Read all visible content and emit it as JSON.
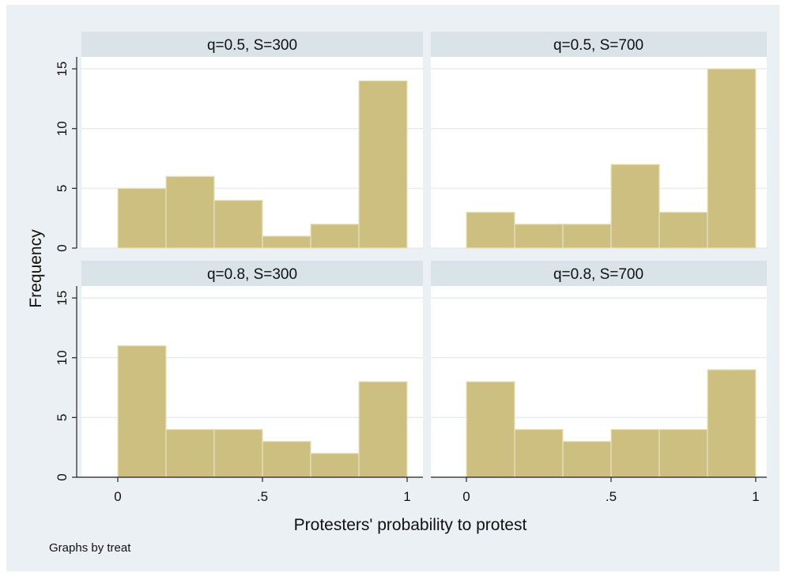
{
  "chart_data": {
    "type": "bar",
    "xlabel": "Protesters' probability to protest",
    "ylabel": "Frequency",
    "note": "Graphs by treat",
    "ylim": [
      0,
      16
    ],
    "xlim": [
      0,
      1
    ],
    "y_ticks": [
      "0",
      "5",
      "10",
      "15"
    ],
    "y_tick_values": [
      0,
      5,
      10,
      15
    ],
    "x_ticks": [
      "0",
      ".5",
      "1"
    ],
    "x_tick_values": [
      0,
      0.5,
      1
    ],
    "bin_edges": [
      0,
      0.1667,
      0.3333,
      0.5,
      0.6667,
      0.8333,
      1
    ],
    "grid": true,
    "colors": {
      "background": "#eaf0f3",
      "plot_background": "#ffffff",
      "strip": "#d9e3e8",
      "bar_fill": "#cdbf80",
      "bar_edge": "#e8e2c0",
      "grid": "#e6edf0",
      "axis": "#222222"
    },
    "panels": [
      {
        "title": "q=0.5, S=300",
        "values": [
          5,
          6,
          4,
          1,
          2,
          14
        ]
      },
      {
        "title": "q=0.5, S=700",
        "values": [
          3,
          2,
          2,
          7,
          3,
          15
        ]
      },
      {
        "title": "q=0.8, S=300",
        "values": [
          11,
          4,
          4,
          3,
          2,
          8
        ]
      },
      {
        "title": "q=0.8, S=700",
        "values": [
          8,
          4,
          3,
          4,
          4,
          9
        ]
      }
    ]
  }
}
